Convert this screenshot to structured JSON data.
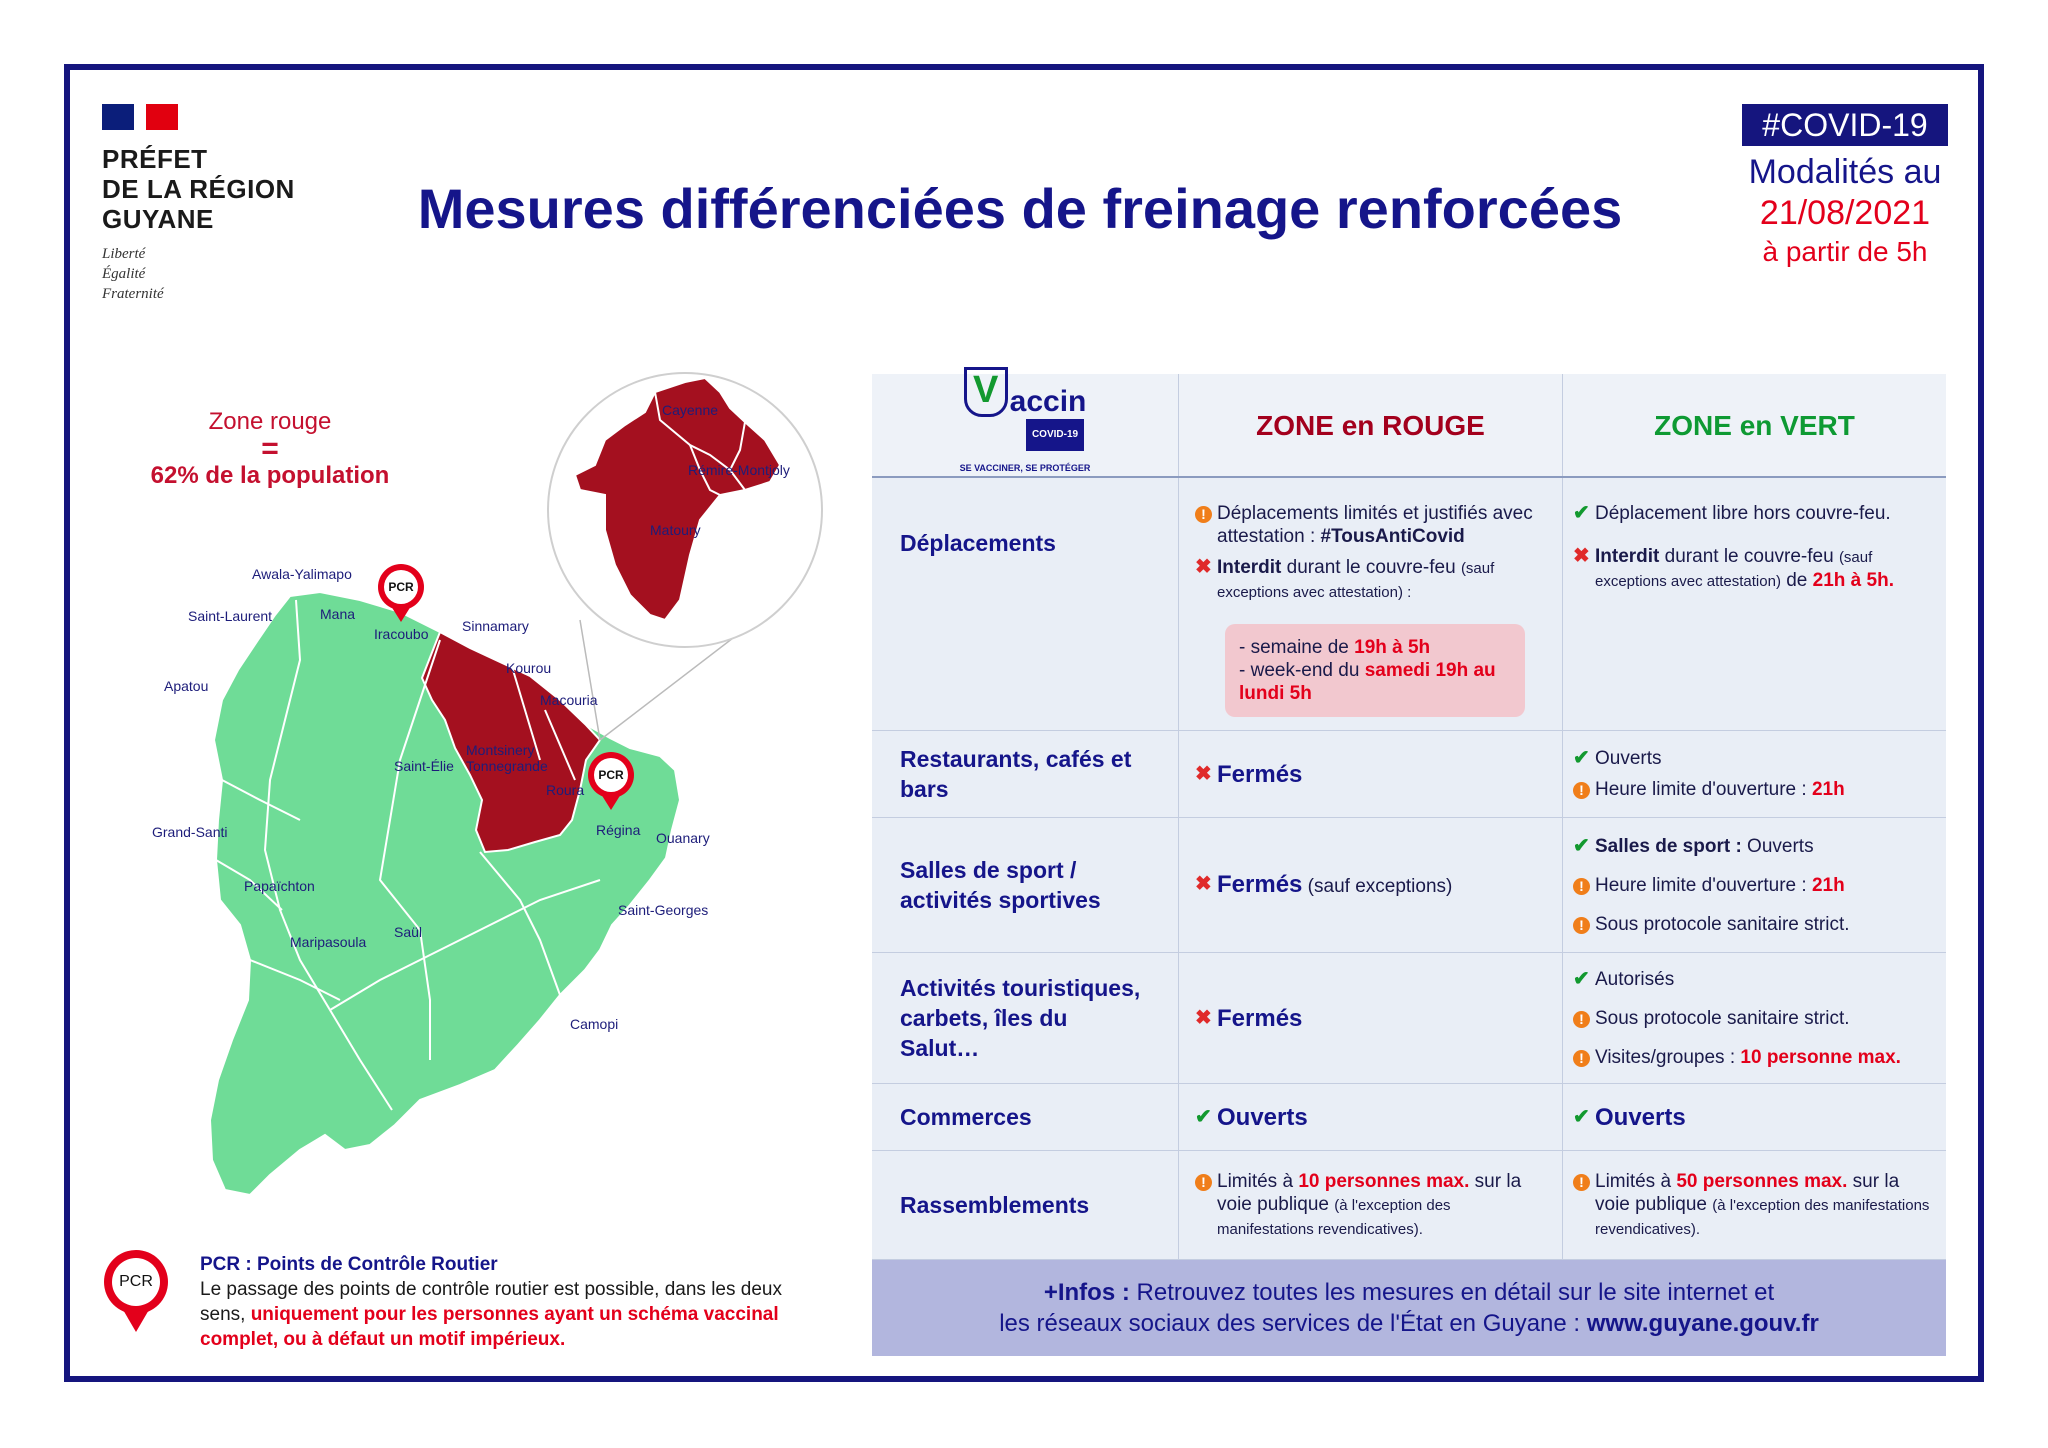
{
  "header": {
    "logo_lines": [
      "PRÉFET",
      "DE LA RÉGION",
      "GUYANE"
    ],
    "devise": [
      "Liberté",
      "Égalité",
      "Fraternité"
    ],
    "title": "Mesures différenciées de freinage renforcées",
    "tag": "#COVID-19",
    "modalites": "Modalités au",
    "date": "21/08/2021",
    "from": "à partir de 5h"
  },
  "zone_rouge": {
    "label": "Zone rouge",
    "equals": "=",
    "population": "62% de la population"
  },
  "map": {
    "places": [
      "Awala-Yalimapo",
      "Mana",
      "Saint-Laurent",
      "Iracoubo",
      "Sinnamary",
      "Kourou",
      "Apatou",
      "Macouria",
      "Saint-Élie",
      "Montsinery Tonnegrande",
      "Roura",
      "Régina",
      "Ouanary",
      "Grand-Santi",
      "Papaïchton",
      "Saint-Georges",
      "Maripasoula",
      "Saül",
      "Camopi"
    ],
    "inset_places": [
      "Cayenne",
      "Rémire-Montjoly",
      "Matoury"
    ],
    "pcr_label": "PCR",
    "colors": {
      "green": "#6fdc97",
      "red": "#a4101f"
    }
  },
  "pcr_legend": {
    "pin": "PCR",
    "title": "PCR : Points de Contrôle Routier",
    "text": "Le passage des points de contrôle routier est possible, dans les deux sens,",
    "emphasis": "uniquement pour les personnes ayant un schéma vaccinal complet, ou à défaut un motif impérieux."
  },
  "table": {
    "vaccin_logo": "accin",
    "vaccin_logo_v": "V",
    "vaccin_badge": "COVID-19",
    "vaccin_tagline": "SE VACCINER, SE PROTÉGER",
    "col_rouge": "ZONE en ROUGE",
    "col_vert": "ZONE en VERT",
    "rows": {
      "deplacements": {
        "label": "Déplacements",
        "rouge_1a": "Déplacements limités et justifiés avec attestation : ",
        "rouge_1b": "#TousAntiCovid",
        "rouge_2a": "Interdit",
        "rouge_2b": " durant le couvre-feu ",
        "rouge_2c": "(sauf exceptions avec attestation) :",
        "box_1a": "- semaine de ",
        "box_1b": "19h à 5h",
        "box_2a": "- week-end du ",
        "box_2b": "samedi 19h au lundi 5h",
        "vert_1": "Déplacement libre hors couvre-feu.",
        "vert_2a": "Interdit",
        "vert_2b": " durant le couvre-feu ",
        "vert_2c": "(sauf exceptions avec attestation)",
        "vert_2d": " de ",
        "vert_2e": "21h à 5h."
      },
      "restaurants": {
        "label": "Restaurants, cafés et bars",
        "rouge": "Fermés",
        "vert_1": "Ouverts",
        "vert_2a": "Heure limite d'ouverture : ",
        "vert_2b": "21h"
      },
      "sport": {
        "label": "Salles de sport / activités sportives",
        "rouge_a": "Fermés",
        "rouge_b": " (sauf exceptions)",
        "vert_1a": "Salles de sport :",
        "vert_1b": " Ouverts",
        "vert_2a": "Heure limite d'ouverture : ",
        "vert_2b": "21h",
        "vert_3": "Sous protocole sanitaire strict."
      },
      "tourisme": {
        "label": "Activités touristiques, carbets, îles du Salut…",
        "rouge": "Fermés",
        "vert_1": "Autorisés",
        "vert_2": "Sous protocole sanitaire strict.",
        "vert_3a": "Visites/groupes : ",
        "vert_3b": "10 personne max."
      },
      "commerces": {
        "label": "Commerces",
        "rouge": "Ouverts",
        "vert": "Ouverts"
      },
      "rassemblements": {
        "label": "Rassemblements",
        "rouge_a": "Limités à ",
        "rouge_b": "10 personnes max.",
        "rouge_c": " sur la voie publique ",
        "rouge_d": "(à l'exception des manifestations revendicatives).",
        "vert_a": "Limités à ",
        "vert_b": "50 personnes max.",
        "vert_c": " sur la voie publique ",
        "vert_d": "(à l'exception des manifestations revendicatives)."
      }
    },
    "infos_a": "+Infos :",
    "infos_b": " Retrouvez toutes les mesures en détail sur le site internet et",
    "infos_c": "les réseaux sociaux des services de l'État en Guyane : ",
    "infos_d": "www.guyane.gouv.fr"
  }
}
